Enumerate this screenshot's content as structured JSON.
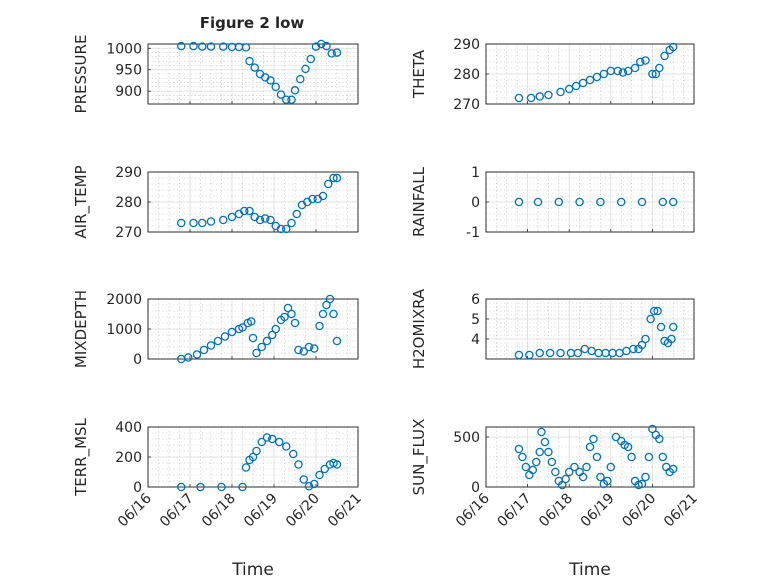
{
  "figure_title": "Figure 2 low",
  "colors": {
    "marker": "#0072bd",
    "axis": "#262626",
    "grid": "#cccccc"
  },
  "chart_data": [
    {
      "type": "scatter",
      "ylabel": "PRESSURE",
      "xlabel": "",
      "ylim": [
        870,
        1010
      ],
      "yticks": [
        "900",
        "950",
        "1000"
      ],
      "ytick_values": [
        900,
        950,
        1000
      ],
      "x": [
        "06/16 19:00",
        "06/17 02:00",
        "06/17 07:00",
        "06/17 12:00",
        "06/17 19:00",
        "06/18 00:00",
        "06/18 04:00",
        "06/18 08:00",
        "06/18 10:00",
        "06/18 13:00",
        "06/18 16:00",
        "06/18 19:00",
        "06/18 22:00",
        "06/19 01:00",
        "06/19 04:00",
        "06/19 07:00",
        "06/19 10:00",
        "06/19 12:00",
        "06/19 15:00",
        "06/19 18:00",
        "06/19 21:00",
        "06/20 00:00",
        "06/20 03:00",
        "06/20 06:00",
        "06/20 09:00",
        "06/20 12:00"
      ],
      "y": [
        1005,
        1005,
        1004,
        1004,
        1004,
        1003,
        1003,
        1002,
        970,
        955,
        940,
        932,
        925,
        910,
        892,
        880,
        880,
        902,
        928,
        952,
        975,
        1004,
        1010,
        1005,
        988,
        990
      ]
    },
    {
      "type": "scatter",
      "ylabel": "THETA",
      "xlabel": "",
      "ylim": [
        270,
        290
      ],
      "yticks": [
        "270",
        "280",
        "290"
      ],
      "ytick_values": [
        270,
        280,
        290
      ],
      "x": [
        "06/16 19:00",
        "06/17 02:00",
        "06/17 07:00",
        "06/17 12:00",
        "06/17 19:00",
        "06/18 00:00",
        "06/18 04:00",
        "06/18 08:00",
        "06/18 12:00",
        "06/18 16:00",
        "06/18 20:00",
        "06/19 00:00",
        "06/19 04:00",
        "06/19 07:00",
        "06/19 10:00",
        "06/19 14:00",
        "06/19 17:00",
        "06/19 20:00",
        "06/20 00:00",
        "06/20 02:00",
        "06/20 04:00",
        "06/20 07:00",
        "06/20 10:00",
        "06/20 12:00"
      ],
      "y": [
        272,
        272,
        272.5,
        273,
        274,
        275,
        276,
        277,
        278,
        279,
        280,
        281,
        281,
        280.5,
        281,
        282,
        284,
        284.5,
        280,
        280,
        282,
        286,
        288,
        289
      ]
    },
    {
      "type": "scatter",
      "ylabel": "AIR_TEMP",
      "xlabel": "",
      "ylim": [
        270,
        290
      ],
      "yticks": [
        "270",
        "280",
        "290"
      ],
      "ytick_values": [
        270,
        280,
        290
      ],
      "x": [
        "06/16 19:00",
        "06/17 02:00",
        "06/17 07:00",
        "06/17 12:00",
        "06/17 19:00",
        "06/18 00:00",
        "06/18 04:00",
        "06/18 07:00",
        "06/18 10:00",
        "06/18 13:00",
        "06/18 16:00",
        "06/18 19:00",
        "06/18 22:00",
        "06/19 01:00",
        "06/19 04:00",
        "06/19 07:00",
        "06/19 10:00",
        "06/19 13:00",
        "06/19 16:00",
        "06/19 19:00",
        "06/19 22:00",
        "06/20 01:00",
        "06/20 04:00",
        "06/20 07:00",
        "06/20 10:00",
        "06/20 12:00"
      ],
      "y": [
        273,
        273,
        273,
        273.5,
        274,
        275,
        276,
        277,
        277,
        275,
        274,
        274.5,
        274,
        272,
        271,
        271,
        273,
        276,
        279,
        280,
        281,
        281,
        282,
        286,
        288,
        288
      ]
    },
    {
      "type": "scatter",
      "ylabel": "RAINFALL",
      "xlabel": "",
      "ylim": [
        -1,
        1
      ],
      "yticks": [
        "-1",
        "0",
        "1"
      ],
      "ytick_values": [
        -1,
        0,
        1
      ],
      "x": [
        "06/16 19:00",
        "06/17 06:00",
        "06/17 18:00",
        "06/18 06:00",
        "06/18 18:00",
        "06/19 06:00",
        "06/19 18:00",
        "06/20 06:00",
        "06/20 12:00"
      ],
      "y": [
        0,
        0,
        0,
        0,
        0,
        0,
        0,
        0,
        0
      ]
    },
    {
      "type": "scatter",
      "ylabel": "MIXDEPTH",
      "xlabel": "",
      "ylim": [
        0,
        2000
      ],
      "yticks": [
        "0",
        "1000",
        "2000"
      ],
      "ytick_values": [
        0,
        1000,
        2000
      ],
      "x": [
        "06/16 19:00",
        "06/16 23:00",
        "06/17 04:00",
        "06/17 08:00",
        "06/17 12:00",
        "06/17 16:00",
        "06/17 20:00",
        "06/18 00:00",
        "06/18 04:00",
        "06/18 06:00",
        "06/18 09:00",
        "06/18 11:00",
        "06/18 12:00",
        "06/18 14:00",
        "06/18 17:00",
        "06/18 20:00",
        "06/18 23:00",
        "06/19 01:00",
        "06/19 04:00",
        "06/19 06:00",
        "06/19 08:00",
        "06/19 10:00",
        "06/19 12:00",
        "06/19 14:00",
        "06/19 17:00",
        "06/19 20:00",
        "06/19 23:00",
        "06/20 02:00",
        "06/20 04:00",
        "06/20 06:00",
        "06/20 08:00",
        "06/20 10:00",
        "06/20 12:00"
      ],
      "y": [
        0,
        50,
        150,
        300,
        450,
        600,
        750,
        900,
        1000,
        1050,
        1200,
        1250,
        700,
        200,
        400,
        600,
        800,
        1000,
        1300,
        1400,
        1700,
        1500,
        1200,
        300,
        250,
        400,
        350,
        1100,
        1500,
        1800,
        2000,
        1500,
        600
      ]
    },
    {
      "type": "scatter",
      "ylabel": "H2OMIXRA",
      "xlabel": "",
      "ylim": [
        3,
        6
      ],
      "yticks": [
        "4",
        "5",
        "6"
      ],
      "ytick_values": [
        4,
        5,
        6
      ],
      "x": [
        "06/16 19:00",
        "06/17 01:00",
        "06/17 07:00",
        "06/17 13:00",
        "06/17 19:00",
        "06/18 01:00",
        "06/18 05:00",
        "06/18 09:00",
        "06/18 13:00",
        "06/18 17:00",
        "06/18 21:00",
        "06/19 01:00",
        "06/19 05:00",
        "06/19 09:00",
        "06/19 13:00",
        "06/19 16:00",
        "06/19 18:00",
        "06/19 20:00",
        "06/19 23:00",
        "06/20 01:00",
        "06/20 03:00",
        "06/20 05:00",
        "06/20 07:00",
        "06/20 09:00",
        "06/20 11:00",
        "06/20 12:00"
      ],
      "y": [
        3.2,
        3.2,
        3.3,
        3.3,
        3.3,
        3.3,
        3.3,
        3.5,
        3.4,
        3.3,
        3.3,
        3.3,
        3.3,
        3.4,
        3.5,
        3.5,
        3.7,
        4.0,
        5.0,
        5.4,
        5.4,
        4.6,
        3.9,
        3.8,
        4.0,
        4.6
      ]
    },
    {
      "type": "scatter",
      "ylabel": "TERR_MSL",
      "xlabel": "Time",
      "ylim": [
        0,
        400
      ],
      "yticks": [
        "0",
        "200",
        "400"
      ],
      "ytick_values": [
        0,
        200,
        400
      ],
      "xticks": [
        "06/16",
        "06/17",
        "06/18",
        "06/19",
        "06/20",
        "06/21"
      ],
      "x": [
        "06/16 19:00",
        "06/17 06:00",
        "06/17 18:00",
        "06/18 06:00",
        "06/18 08:00",
        "06/18 10:00",
        "06/18 12:00",
        "06/18 14:00",
        "06/18 17:00",
        "06/18 20:00",
        "06/18 23:00",
        "06/19 03:00",
        "06/19 07:00",
        "06/19 11:00",
        "06/19 14:00",
        "06/19 17:00",
        "06/19 20:00",
        "06/19 23:00",
        "06/20 02:00",
        "06/20 05:00",
        "06/20 08:00",
        "06/20 10:00",
        "06/20 12:00"
      ],
      "y": [
        0,
        0,
        0,
        0,
        130,
        180,
        200,
        240,
        300,
        330,
        320,
        300,
        270,
        220,
        150,
        50,
        5,
        20,
        80,
        120,
        150,
        160,
        150
      ]
    },
    {
      "type": "scatter",
      "ylabel": "SUN_FLUX",
      "xlabel": "Time",
      "ylim": [
        0,
        600
      ],
      "yticks": [
        "0",
        "500"
      ],
      "ytick_values": [
        0,
        500
      ],
      "xticks": [
        "06/16",
        "06/17",
        "06/18",
        "06/19",
        "06/20",
        "06/21"
      ],
      "x": [
        "06/16 19:00",
        "06/16 21:00",
        "06/16 23:00",
        "06/17 01:00",
        "06/17 03:00",
        "06/17 05:00",
        "06/17 07:00",
        "06/17 08:00",
        "06/17 10:00",
        "06/17 12:00",
        "06/17 14:00",
        "06/17 16:00",
        "06/17 18:00",
        "06/17 20:00",
        "06/17 22:00",
        "06/18 00:00",
        "06/18 03:00",
        "06/18 06:00",
        "06/18 08:00",
        "06/18 10:00",
        "06/18 12:00",
        "06/18 14:00",
        "06/18 16:00",
        "06/18 18:00",
        "06/18 20:00",
        "06/18 22:00",
        "06/19 00:00",
        "06/19 03:00",
        "06/19 06:00",
        "06/19 08:00",
        "06/19 10:00",
        "06/19 12:00",
        "06/19 14:00",
        "06/19 16:00",
        "06/19 18:00",
        "06/19 20:00",
        "06/19 22:00",
        "06/20 00:00",
        "06/20 02:00",
        "06/20 04:00",
        "06/20 06:00",
        "06/20 08:00",
        "06/20 10:00",
        "06/20 12:00"
      ],
      "y": [
        380,
        300,
        200,
        120,
        170,
        250,
        350,
        550,
        450,
        350,
        250,
        150,
        60,
        20,
        80,
        150,
        200,
        150,
        100,
        200,
        400,
        480,
        300,
        100,
        30,
        60,
        200,
        500,
        460,
        420,
        400,
        300,
        60,
        20,
        30,
        100,
        300,
        580,
        520,
        480,
        300,
        200,
        150,
        180
      ]
    }
  ]
}
